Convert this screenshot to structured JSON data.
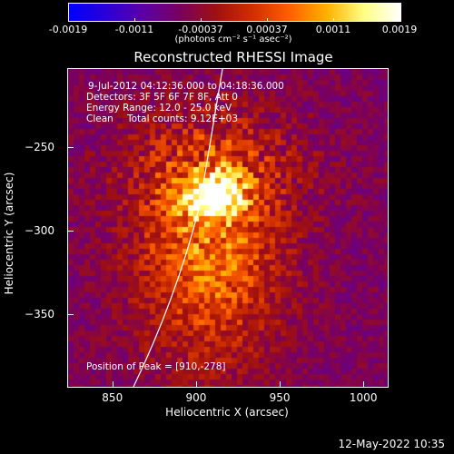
{
  "colorbar": {
    "ticks": [
      "-0.0019",
      "-0.0011",
      "-0.00037",
      "0.00037",
      "0.0011",
      "0.0019"
    ],
    "unit": "(photons cm⁻² s⁻¹ asec⁻²)",
    "colors": [
      "#0000ff",
      "#2b00d6",
      "#5b00a8",
      "#7a0060",
      "#a01010",
      "#d03000",
      "#ff6000",
      "#ffb000",
      "#ffff80",
      "#ffffff"
    ]
  },
  "chart_data": {
    "type": "heatmap",
    "title": "Reconstructed RHESSI Image",
    "xlabel": "Heliocentric X (arcsec)",
    "ylabel": "Heliocentric Y (arcsec)",
    "x_ticks": [
      "850",
      "900",
      "950",
      "1000"
    ],
    "y_ticks": [
      "-250",
      "-300",
      "-350"
    ],
    "xlim": [
      823,
      1014
    ],
    "ylim": [
      -393,
      -203
    ],
    "peak": [
      910,
      -278
    ],
    "annotations": {
      "time_range": "9-Jul-2012 04:12:36.000 to 04:18:36.000",
      "detectors": "Detectors: 3F 5F 6F 7F 8F, Att 0",
      "energy": "Energy Range: 12.0 - 25.0 keV",
      "clean_label": "Clean",
      "counts": "Total counts: 9.12E+03",
      "peak_text": "Position of Peak = [910,-278]"
    }
  },
  "footer": {
    "timestamp": "12-May-2022 10:35"
  }
}
